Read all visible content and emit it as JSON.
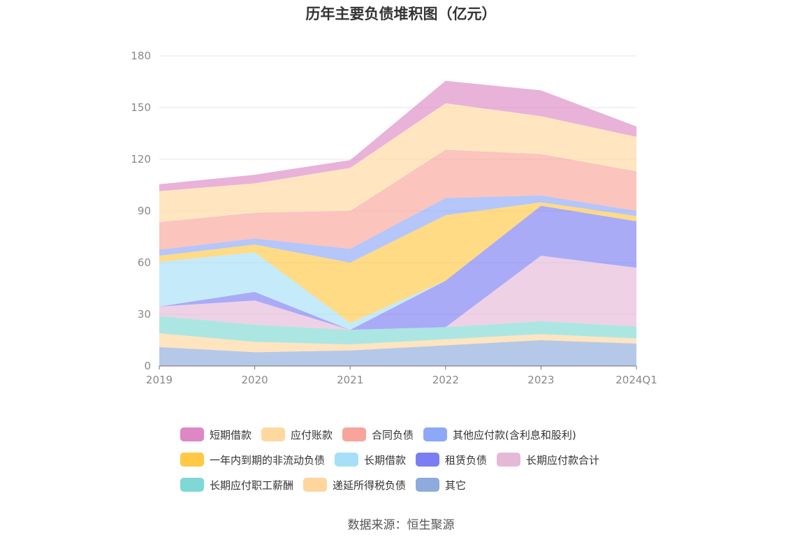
{
  "title": "历年主要负债堆积图（亿元）",
  "source": "数据来源：恒生聚源",
  "chart_data": {
    "type": "area",
    "stacked": true,
    "title": "历年主要负债堆积图（亿元）",
    "xlabel": "",
    "ylabel": "",
    "categories": [
      "2019",
      "2020",
      "2021",
      "2022",
      "2023",
      "2024Q1"
    ],
    "ylim": [
      0,
      180
    ],
    "yticks": [
      0,
      30,
      60,
      90,
      120,
      150,
      180
    ],
    "grid": true,
    "legend_position": "bottom",
    "series": [
      {
        "name": "其它",
        "color": "#8faadc",
        "values": [
          11,
          8,
          9,
          12,
          15,
          13
        ]
      },
      {
        "name": "递延所得税负债",
        "color": "#ffd59e",
        "values": [
          8,
          6,
          3.5,
          3.5,
          3.5,
          3
        ]
      },
      {
        "name": "长期应付职工薪酬",
        "color": "#80d8d4",
        "values": [
          10,
          10,
          8.5,
          7,
          7.5,
          7
        ]
      },
      {
        "name": "长期应付款合计",
        "color": "#e6b8d8",
        "values": [
          5.5,
          14,
          0,
          0,
          38,
          34
        ]
      },
      {
        "name": "租赁负债",
        "color": "#7b7ef2",
        "values": [
          0,
          5,
          0,
          27,
          29,
          27
        ]
      },
      {
        "name": "长期借款",
        "color": "#a6dff7",
        "values": [
          26,
          23,
          4,
          0,
          0,
          0
        ]
      },
      {
        "name": "一年内到期的非流动负债",
        "color": "#ffc845",
        "values": [
          3.5,
          4.5,
          35,
          38,
          2,
          3
        ]
      },
      {
        "name": "其他应付款(含利息和股利)",
        "color": "#8ca8f7",
        "values": [
          3.5,
          3.5,
          8,
          10,
          4,
          3
        ]
      },
      {
        "name": "合同负债",
        "color": "#f9a49a",
        "values": [
          16,
          15,
          22,
          28,
          24,
          23
        ]
      },
      {
        "name": "应付账款",
        "color": "#ffd8a0",
        "values": [
          18,
          17,
          25,
          27,
          22,
          20
        ]
      },
      {
        "name": "短期借款",
        "color": "#dd88c4",
        "values": [
          4,
          5,
          4.5,
          13,
          15,
          6
        ]
      }
    ]
  },
  "legend_rows": [
    [
      "短期借款",
      "应付账款",
      "合同负债",
      "其他应付款(含利息和股利)"
    ],
    [
      "一年内到期的非流动负债",
      "长期借款",
      "租赁负债",
      "长期应付款合计"
    ],
    [
      "长期应付职工薪酬",
      "递延所得税负债",
      "其它"
    ]
  ]
}
